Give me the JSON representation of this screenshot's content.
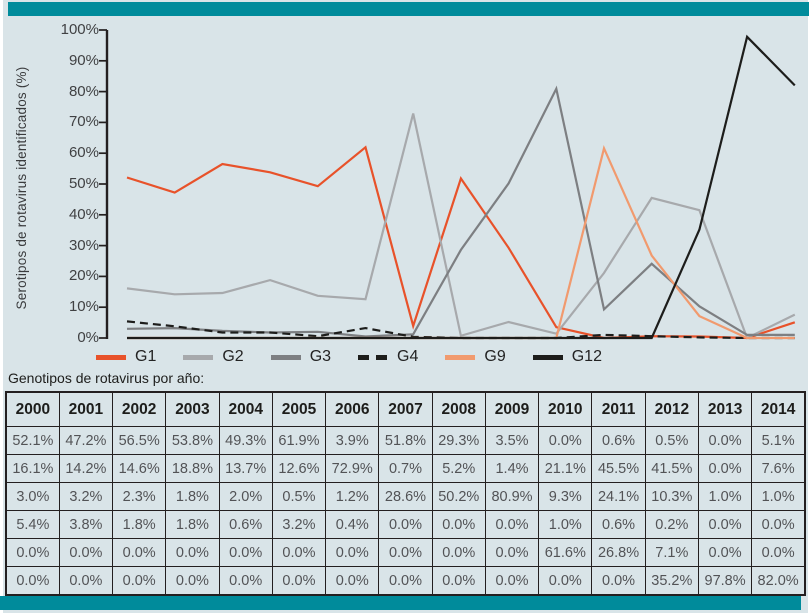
{
  "figure": {
    "accent_color": "#008b9b",
    "panel_color": "#d9e4e8"
  },
  "chart_data": {
    "type": "line",
    "title": "",
    "xlabel": "",
    "ylabel": "Serotipos de rotavirus identificados (%)",
    "ylim": [
      0,
      100
    ],
    "ytick_step": 10,
    "ytick_suffix": "%",
    "grid": false,
    "legend_position": "bottom",
    "x": [
      2000,
      2001,
      2002,
      2003,
      2004,
      2005,
      2006,
      2007,
      2008,
      2009,
      2010,
      2011,
      2012,
      2013,
      2014
    ],
    "series": [
      {
        "name": "G1",
        "color": "#e8522a",
        "dashed": false,
        "values": [
          52.1,
          47.2,
          56.5,
          53.8,
          49.3,
          61.9,
          3.9,
          51.8,
          29.3,
          3.5,
          0.0,
          0.6,
          0.5,
          0.0,
          5.1
        ]
      },
      {
        "name": "G2",
        "color": "#a7a9ac",
        "dashed": false,
        "values": [
          16.1,
          14.2,
          14.6,
          18.8,
          13.7,
          12.6,
          72.9,
          0.7,
          5.2,
          1.4,
          21.1,
          45.5,
          41.5,
          0.0,
          7.6
        ]
      },
      {
        "name": "G3",
        "color": "#7d7f82",
        "dashed": false,
        "values": [
          3.0,
          3.2,
          2.3,
          1.8,
          2.0,
          0.5,
          1.2,
          28.6,
          50.2,
          80.9,
          9.3,
          24.1,
          10.3,
          1.0,
          1.0
        ]
      },
      {
        "name": "G4",
        "color": "#1d1d1b",
        "dashed": true,
        "values": [
          5.4,
          3.8,
          1.8,
          1.8,
          0.6,
          3.2,
          0.4,
          0.0,
          0.0,
          0.0,
          1.0,
          0.6,
          0.2,
          0.0,
          0.0
        ]
      },
      {
        "name": "G9",
        "color": "#f19a6e",
        "dashed": false,
        "values": [
          0.0,
          0.0,
          0.0,
          0.0,
          0.0,
          0.0,
          0.0,
          0.0,
          0.0,
          0.0,
          61.6,
          26.8,
          7.1,
          0.0,
          0.0
        ]
      },
      {
        "name": "G12",
        "color": "#1d1d1b",
        "dashed": false,
        "values": [
          0.0,
          0.0,
          0.0,
          0.0,
          0.0,
          0.0,
          0.0,
          0.0,
          0.0,
          0.0,
          0.0,
          0.0,
          35.2,
          97.8,
          82.0
        ]
      }
    ]
  },
  "table": {
    "caption": "Genotipos de rotavirus por año:",
    "value_suffix": "%"
  }
}
